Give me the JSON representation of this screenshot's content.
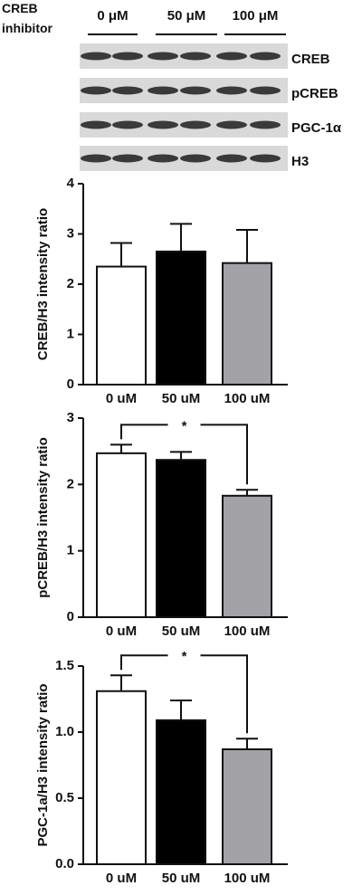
{
  "blot": {
    "treatment": "CREB inhibitor",
    "doses": [
      "0 μM",
      "50 μM",
      "100 μM"
    ],
    "rows": [
      "CREB",
      "pCREB",
      "PGC-1α",
      "H3"
    ]
  },
  "chart_data": [
    {
      "type": "bar",
      "y_label": "CREB/H3 intensity ratio",
      "categories": [
        "0 uM",
        "50 uM",
        "100 uM"
      ],
      "values": [
        2.35,
        2.65,
        2.42
      ],
      "errors": [
        0.47,
        0.55,
        0.66
      ],
      "colors": [
        "#ffffff",
        "#000000",
        "#a3a3a7"
      ],
      "ylim": [
        0,
        4
      ],
      "yticks": [
        0,
        1,
        2,
        3,
        4
      ]
    },
    {
      "type": "bar",
      "y_label": "pCREB/H3 intensity ratio",
      "categories": [
        "0 uM",
        "50 uM",
        "100 uM"
      ],
      "values": [
        2.47,
        2.37,
        1.83
      ],
      "errors": [
        0.13,
        0.12,
        0.09
      ],
      "colors": [
        "#ffffff",
        "#000000",
        "#a3a3a7"
      ],
      "ylim": [
        0,
        3
      ],
      "yticks": [
        0,
        1,
        2,
        3
      ],
      "significance": "*"
    },
    {
      "type": "bar",
      "y_label": "PGC-1a/H3 intensity ratio",
      "categories": [
        "0 uM",
        "50 uM",
        "100 uM"
      ],
      "values": [
        1.31,
        1.09,
        0.87
      ],
      "errors": [
        0.12,
        0.15,
        0.08
      ],
      "colors": [
        "#ffffff",
        "#000000",
        "#a3a3a7"
      ],
      "ylim": [
        0,
        1.5
      ],
      "yticks": [
        {
          "value": 0,
          "label": "0.0"
        },
        0.5,
        {
          "value": 1,
          "label": "1.0"
        },
        1.5
      ],
      "significance": "*"
    }
  ]
}
